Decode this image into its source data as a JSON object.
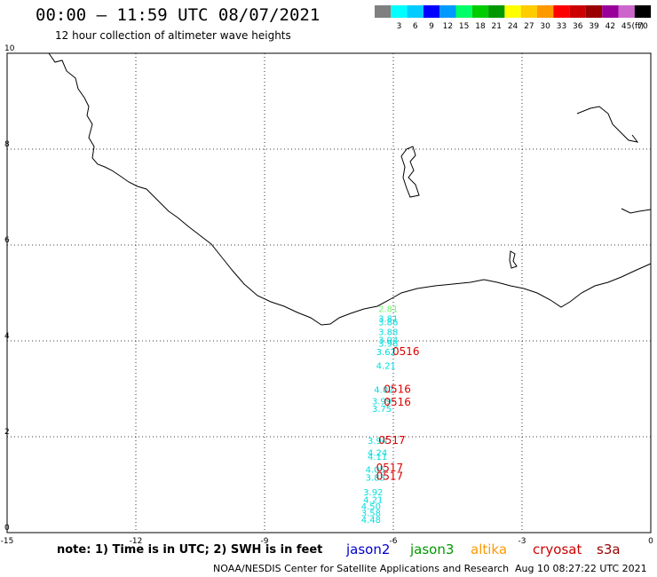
{
  "header": {
    "title": "00:00 – 11:59 UTC 08/07/2021",
    "subtitle": "12 hour collection of altimeter wave heights"
  },
  "color_scale": {
    "unit": "(ft)",
    "bins": [
      {
        "label": "",
        "color": "#808080"
      },
      {
        "label": "3",
        "color": "#00ffff"
      },
      {
        "label": "6",
        "color": "#00ccff"
      },
      {
        "label": "9",
        "color": "#0000ff"
      },
      {
        "label": "12",
        "color": "#0099ff"
      },
      {
        "label": "15",
        "color": "#00ff66"
      },
      {
        "label": "18",
        "color": "#00cc00"
      },
      {
        "label": "21",
        "color": "#009900"
      },
      {
        "label": "24",
        "color": "#ffff00"
      },
      {
        "label": "27",
        "color": "#ffcc00"
      },
      {
        "label": "30",
        "color": "#ff9900"
      },
      {
        "label": "33",
        "color": "#ff0000"
      },
      {
        "label": "36",
        "color": "#cc0000"
      },
      {
        "label": "39",
        "color": "#990000"
      },
      {
        "label": "42",
        "color": "#990099"
      },
      {
        "label": "45",
        "color": "#cc66cc"
      },
      {
        "label": "70",
        "color": "#000000"
      }
    ]
  },
  "map": {
    "x_range": [
      -15,
      0
    ],
    "y_range": [
      0,
      10
    ],
    "x_ticks": [
      {
        "value": -15,
        "label": "-15"
      },
      {
        "value": -12,
        "label": "-12"
      },
      {
        "value": -9,
        "label": "-9"
      },
      {
        "value": -6,
        "label": "-6"
      },
      {
        "value": -3,
        "label": "-3"
      },
      {
        "value": 0,
        "label": "0"
      }
    ],
    "y_ticks": [
      {
        "value": 0,
        "label": "0"
      },
      {
        "value": 2,
        "label": "2"
      },
      {
        "value": 4,
        "label": "4"
      },
      {
        "value": 6,
        "label": "6"
      },
      {
        "value": 8,
        "label": "8"
      },
      {
        "value": 10,
        "label": "10"
      }
    ],
    "grid": true,
    "wave_heights": [
      {
        "lon": -6.35,
        "lat": 4.6,
        "value": "2.81",
        "color": "#66ff66"
      },
      {
        "lon": -6.35,
        "lat": 4.4,
        "value": "3.81",
        "color": "#00dddd"
      },
      {
        "lon": -6.35,
        "lat": 4.32,
        "value": "3.86",
        "color": "#00dddd"
      },
      {
        "lon": -6.35,
        "lat": 4.12,
        "value": "3.88",
        "color": "#00dddd"
      },
      {
        "lon": -6.35,
        "lat": 3.95,
        "value": "3.94",
        "color": "#00dddd"
      },
      {
        "lon": -6.35,
        "lat": 3.88,
        "value": "3.96",
        "color": "#00dddd"
      },
      {
        "lon": -6.4,
        "lat": 3.7,
        "value": "3.62",
        "color": "#00dddd"
      },
      {
        "lon": -6.4,
        "lat": 3.42,
        "value": "4.21",
        "color": "#00dddd"
      },
      {
        "lon": -6.45,
        "lat": 2.92,
        "value": "4.02",
        "color": "#00dddd"
      },
      {
        "lon": -6.5,
        "lat": 2.68,
        "value": "3.99",
        "color": "#00dddd"
      },
      {
        "lon": -6.5,
        "lat": 2.52,
        "value": "3.75",
        "color": "#00dddd"
      },
      {
        "lon": -6.6,
        "lat": 1.85,
        "value": "3.94",
        "color": "#00dddd"
      },
      {
        "lon": -6.6,
        "lat": 1.6,
        "value": "4.24",
        "color": "#00dddd"
      },
      {
        "lon": -6.6,
        "lat": 1.52,
        "value": "4.11",
        "color": "#00dddd"
      },
      {
        "lon": -6.65,
        "lat": 1.25,
        "value": "4.05",
        "color": "#00dddd"
      },
      {
        "lon": -6.65,
        "lat": 1.08,
        "value": "3.83",
        "color": "#00dddd"
      },
      {
        "lon": -6.7,
        "lat": 0.78,
        "value": "3.92",
        "color": "#00dddd"
      },
      {
        "lon": -6.7,
        "lat": 0.62,
        "value": "4.21",
        "color": "#00dddd"
      },
      {
        "lon": -6.75,
        "lat": 0.48,
        "value": "4.50",
        "color": "#00dddd"
      },
      {
        "lon": -6.75,
        "lat": 0.34,
        "value": "3.58",
        "color": "#00dddd"
      },
      {
        "lon": -6.75,
        "lat": 0.2,
        "value": "4.48",
        "color": "#00dddd"
      }
    ],
    "time_labels": [
      {
        "lon": -6.02,
        "lat": 3.7,
        "value": "0516",
        "color": "#dd0000"
      },
      {
        "lon": -6.22,
        "lat": 2.92,
        "value": "0516",
        "color": "#dd0000"
      },
      {
        "lon": -6.22,
        "lat": 2.65,
        "value": "0516",
        "color": "#dd0000"
      },
      {
        "lon": -6.35,
        "lat": 1.85,
        "value": "0517",
        "color": "#dd0000"
      },
      {
        "lon": -6.4,
        "lat": 1.28,
        "value": "0517",
        "color": "#dd0000"
      },
      {
        "lon": -6.4,
        "lat": 1.1,
        "value": "0517",
        "color": "#dd0000"
      }
    ]
  },
  "footer": {
    "note": "note:  1)  Time is in UTC;  2)  SWH is in feet",
    "satellites": [
      {
        "name": "jason2",
        "color": "#0000cc"
      },
      {
        "name": "jason3",
        "color": "#009900"
      },
      {
        "name": "altika",
        "color": "#ff9900"
      },
      {
        "name": "cryosat",
        "color": "#cc0000"
      },
      {
        "name": "s3a",
        "color": "#990000"
      }
    ],
    "credit": "NOAA/NESDIS Center for Satellite Applications and Research",
    "timestamp": "Aug 10 08:27:22 UTC 2021"
  }
}
